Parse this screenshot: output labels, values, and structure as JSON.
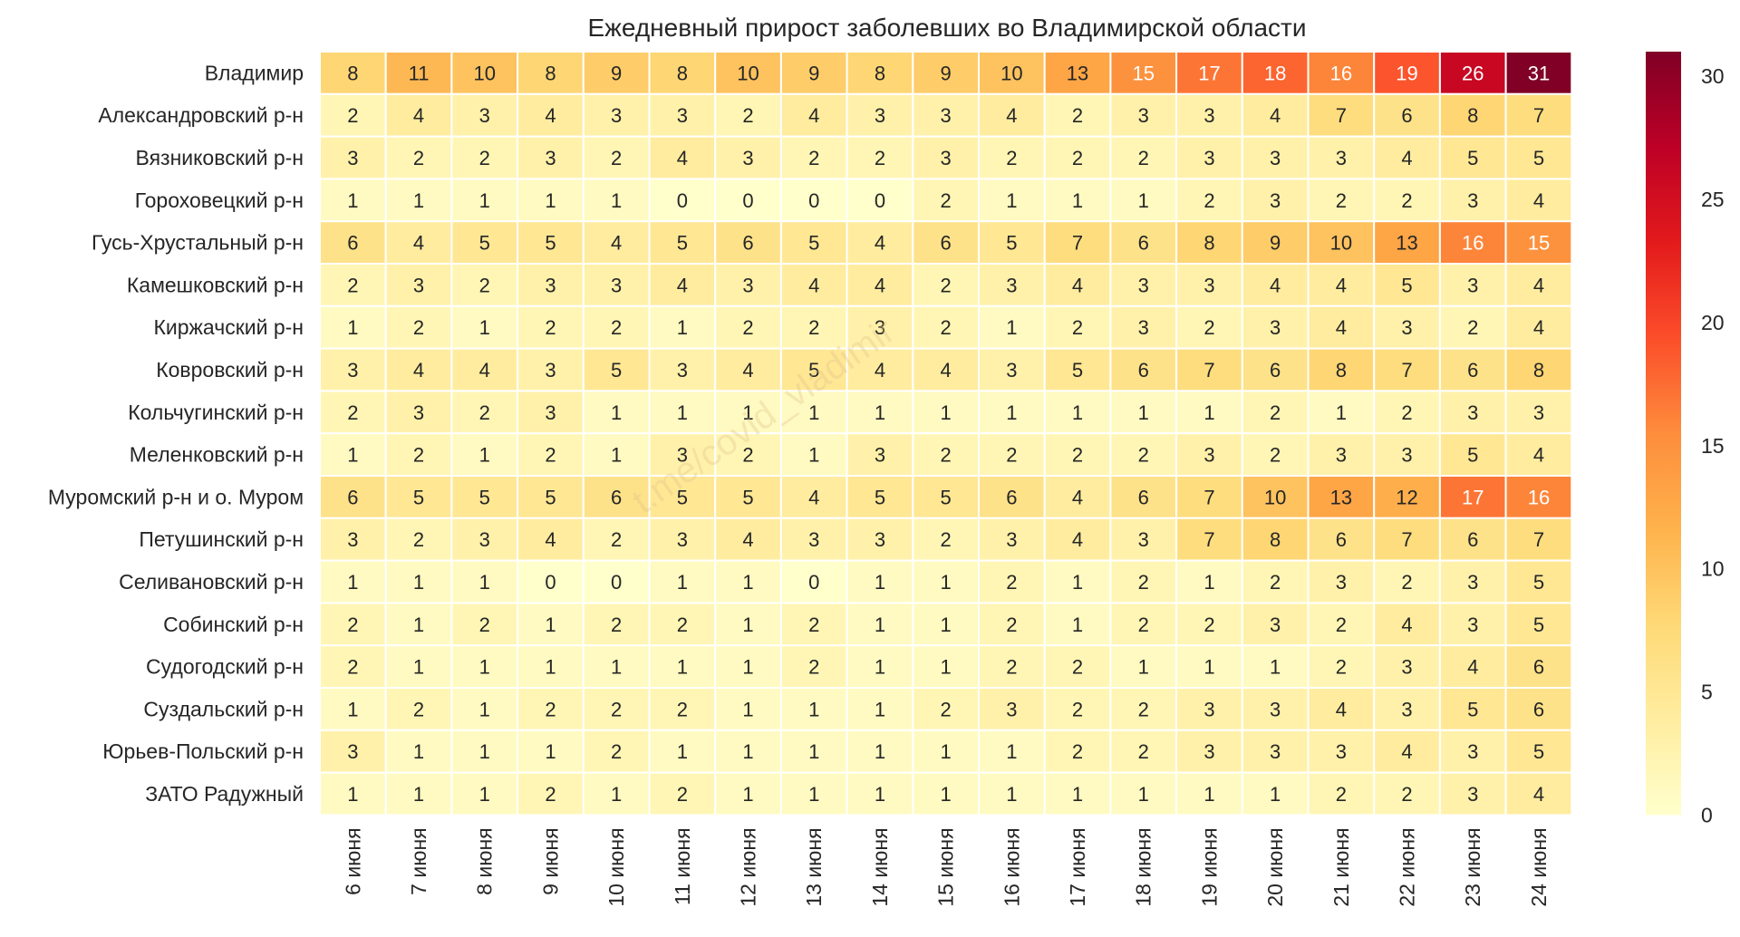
{
  "chart_data": {
    "type": "heatmap",
    "title": "Ежедневный прирост заболевших во Владимирской области",
    "rows": [
      "Владимир",
      "Александровский р-н",
      "Вязниковский р-н",
      "Гороховецкий р-н",
      "Гусь-Хрустальный р-н",
      "Камешковский р-н",
      "Киржачский р-н",
      "Ковровский р-н",
      "Кольчугинский р-н",
      "Меленковский р-н",
      "Муромский р-н и о. Муром",
      "Петушинский р-н",
      "Селивановский р-н",
      "Собинский р-н",
      "Судогодский р-н",
      "Суздальский р-н",
      "Юрьев-Польский р-н",
      "ЗАТО Радужный"
    ],
    "columns": [
      "6 июня",
      "7 июня",
      "8 июня",
      "9 июня",
      "10 июня",
      "11 июня",
      "12 июня",
      "13 июня",
      "14 июня",
      "15 июня",
      "16 июня",
      "17 июня",
      "18 июня",
      "19 июня",
      "20 июня",
      "21 июня",
      "22 июня",
      "23 июня",
      "24 июня"
    ],
    "values": [
      [
        8,
        11,
        10,
        8,
        9,
        8,
        10,
        9,
        8,
        9,
        10,
        13,
        15,
        17,
        18,
        16,
        19,
        26,
        31
      ],
      [
        2,
        4,
        3,
        4,
        3,
        3,
        2,
        4,
        3,
        3,
        4,
        2,
        3,
        3,
        4,
        7,
        6,
        8,
        7
      ],
      [
        3,
        2,
        2,
        3,
        2,
        4,
        3,
        2,
        2,
        3,
        2,
        2,
        2,
        3,
        3,
        3,
        4,
        5,
        5
      ],
      [
        1,
        1,
        1,
        1,
        1,
        0,
        0,
        0,
        0,
        2,
        1,
        1,
        1,
        2,
        3,
        2,
        2,
        3,
        4
      ],
      [
        6,
        4,
        5,
        5,
        4,
        5,
        6,
        5,
        4,
        6,
        5,
        7,
        6,
        8,
        9,
        10,
        13,
        16,
        15
      ],
      [
        2,
        3,
        2,
        3,
        3,
        4,
        3,
        4,
        4,
        2,
        3,
        4,
        3,
        3,
        4,
        4,
        5,
        3,
        4
      ],
      [
        1,
        2,
        1,
        2,
        2,
        1,
        2,
        2,
        3,
        2,
        1,
        2,
        3,
        2,
        3,
        4,
        3,
        2,
        4
      ],
      [
        3,
        4,
        4,
        3,
        5,
        3,
        4,
        5,
        4,
        4,
        3,
        5,
        6,
        7,
        6,
        8,
        7,
        6,
        8
      ],
      [
        2,
        3,
        2,
        3,
        1,
        1,
        1,
        1,
        1,
        1,
        1,
        1,
        1,
        1,
        2,
        1,
        2,
        3,
        3
      ],
      [
        1,
        2,
        1,
        2,
        1,
        3,
        2,
        1,
        3,
        2,
        2,
        2,
        2,
        3,
        2,
        3,
        3,
        5,
        4
      ],
      [
        6,
        5,
        5,
        5,
        6,
        5,
        5,
        4,
        5,
        5,
        6,
        4,
        6,
        7,
        10,
        13,
        12,
        17,
        16
      ],
      [
        3,
        2,
        3,
        4,
        2,
        3,
        4,
        3,
        3,
        2,
        3,
        4,
        3,
        7,
        8,
        6,
        7,
        6,
        7
      ],
      [
        1,
        1,
        1,
        0,
        0,
        1,
        1,
        0,
        1,
        1,
        2,
        1,
        2,
        1,
        2,
        3,
        2,
        3,
        5
      ],
      [
        2,
        1,
        2,
        1,
        2,
        2,
        1,
        2,
        1,
        1,
        2,
        1,
        2,
        2,
        3,
        2,
        4,
        3,
        5
      ],
      [
        2,
        1,
        1,
        1,
        1,
        1,
        1,
        2,
        1,
        1,
        2,
        2,
        1,
        1,
        1,
        2,
        3,
        4,
        6
      ],
      [
        1,
        2,
        1,
        2,
        2,
        2,
        1,
        1,
        1,
        2,
        3,
        2,
        2,
        3,
        3,
        4,
        3,
        5,
        6
      ],
      [
        3,
        1,
        1,
        1,
        2,
        1,
        1,
        1,
        1,
        1,
        1,
        2,
        2,
        3,
        3,
        3,
        4,
        3,
        5
      ],
      [
        1,
        1,
        1,
        2,
        1,
        2,
        1,
        1,
        1,
        1,
        1,
        1,
        1,
        1,
        1,
        2,
        2,
        3,
        4
      ]
    ],
    "colorbar": {
      "range": [
        0,
        31
      ],
      "ticks": [
        0,
        5,
        10,
        15,
        20,
        25,
        30
      ]
    },
    "colormap": "YlOrRd",
    "colors": {
      "low": "#fff8c4",
      "mid": "#f9b458",
      "high": "#e52a2a",
      "max": "#7c0a33",
      "grid_line": "#ffffff"
    },
    "watermark": "t.me/covid_vladimir"
  }
}
